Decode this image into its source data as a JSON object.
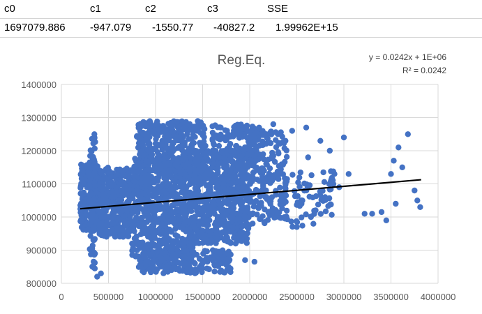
{
  "sheet": {
    "headers": [
      "c0",
      "c1",
      "c2",
      "c3",
      "SSE"
    ],
    "values": [
      "1697079.886",
      "-947.079",
      "-1550.77",
      "-40827.2",
      "1.99962E+15"
    ]
  },
  "chart_data": {
    "type": "scatter",
    "title": "Reg.Eq.",
    "xlim": [
      0,
      4000000
    ],
    "ylim": [
      800000,
      1400000
    ],
    "x_ticks": [
      "0",
      "500000",
      "1000000",
      "1500000",
      "2000000",
      "2500000",
      "3000000",
      "3500000",
      "4000000"
    ],
    "y_ticks": [
      "800000",
      "900000",
      "1000000",
      "1100000",
      "1200000",
      "1300000",
      "1400000"
    ],
    "grid": true,
    "trendline": {
      "equation": "y = 0.0242x + 1E+06",
      "r_squared": "R² = 0.0242",
      "slope": 0.0242,
      "intercept": 1020000,
      "x_range": [
        200000,
        3820000
      ],
      "color": "#000000"
    },
    "marker_color": "#4472C4",
    "clusters": [
      {
        "cx": [
          200000,
          400000
        ],
        "cy": [
          960000,
          1160000
        ],
        "n": 260
      },
      {
        "cx": [
          290000,
          360000
        ],
        "cy": [
          840000,
          1240000
        ],
        "n": 70
      },
      {
        "cx": [
          400000,
          750000
        ],
        "cy": [
          940000,
          1150000
        ],
        "n": 380
      },
      {
        "cx": [
          750000,
          1400000
        ],
        "cy": [
          880000,
          1180000
        ],
        "n": 700
      },
      {
        "cx": [
          800000,
          1550000
        ],
        "cy": [
          1150000,
          1290000
        ],
        "n": 300
      },
      {
        "cx": [
          820000,
          1800000
        ],
        "cy": [
          830000,
          900000
        ],
        "n": 220
      },
      {
        "cx": [
          1400000,
          2000000
        ],
        "cy": [
          920000,
          1200000
        ],
        "n": 600
      },
      {
        "cx": [
          1600000,
          2100000
        ],
        "cy": [
          1160000,
          1280000
        ],
        "n": 140
      },
      {
        "cx": [
          2000000,
          2400000
        ],
        "cy": [
          980000,
          1260000
        ],
        "n": 200
      },
      {
        "cx": [
          2400000,
          2900000
        ],
        "cy": [
          970000,
          1140000
        ],
        "n": 60
      }
    ],
    "points": [
      [
        2450000,
        1260000
      ],
      [
        2600000,
        1270000
      ],
      [
        2750000,
        1230000
      ],
      [
        2850000,
        1200000
      ],
      [
        2900000,
        1130000
      ],
      [
        3000000,
        1240000
      ],
      [
        3050000,
        1130000
      ],
      [
        2950000,
        1090000
      ],
      [
        2800000,
        1060000
      ],
      [
        2700000,
        1020000
      ],
      [
        2650000,
        1000000
      ],
      [
        2500000,
        970000
      ],
      [
        2550000,
        1040000
      ],
      [
        2620000,
        1180000
      ],
      [
        3220000,
        1010000
      ],
      [
        3300000,
        1010000
      ],
      [
        3400000,
        1015000
      ],
      [
        3450000,
        990000
      ],
      [
        3500000,
        1130000
      ],
      [
        3530000,
        1170000
      ],
      [
        3580000,
        1210000
      ],
      [
        3620000,
        1150000
      ],
      [
        3680000,
        1250000
      ],
      [
        3550000,
        1040000
      ],
      [
        3750000,
        1080000
      ],
      [
        3780000,
        1050000
      ],
      [
        3810000,
        1030000
      ],
      [
        1950000,
        870000
      ],
      [
        2050000,
        865000
      ],
      [
        1750000,
        890000
      ],
      [
        1850000,
        920000
      ],
      [
        2100000,
        1270000
      ],
      [
        2300000,
        1250000
      ],
      [
        2380000,
        1230000
      ],
      [
        2250000,
        1280000
      ],
      [
        380000,
        820000
      ],
      [
        420000,
        830000
      ],
      [
        350000,
        1250000
      ],
      [
        1050000,
        880000
      ]
    ]
  }
}
